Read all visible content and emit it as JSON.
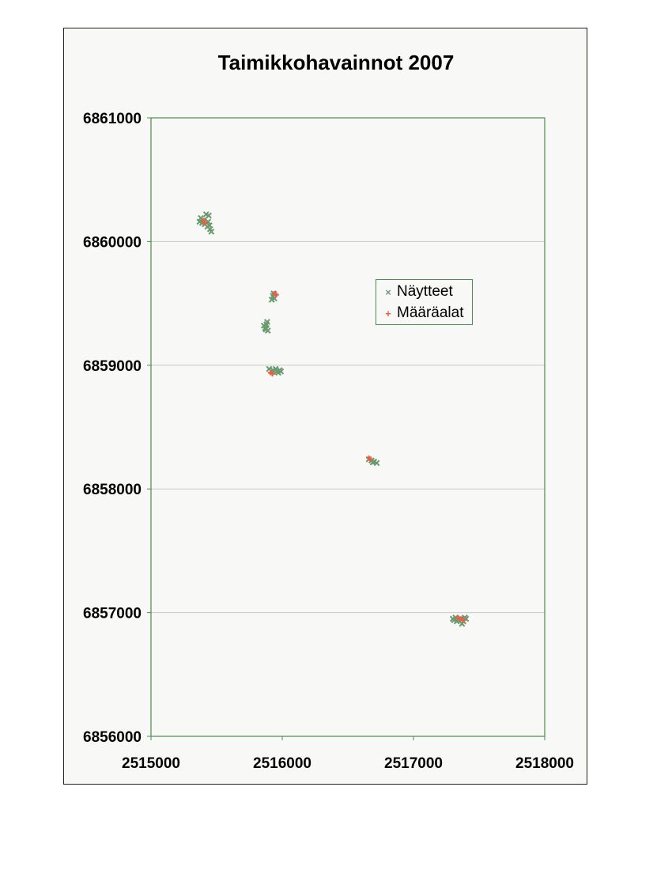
{
  "chart_data": {
    "type": "scatter",
    "title": "Taimikkohavainnot 2007",
    "xlabel": "",
    "ylabel": "",
    "xlim": [
      2515000,
      2518000
    ],
    "ylim": [
      6856000,
      6861000
    ],
    "x_ticks": [
      "2515000",
      "2516000",
      "2517000",
      "2518000"
    ],
    "y_ticks": [
      "6861000",
      "6860000",
      "6859000",
      "6858000",
      "6857000",
      "6856000"
    ],
    "grid": "horizontal",
    "legend_position": "right",
    "series": [
      {
        "name": "Näytteet",
        "marker": "x",
        "color": "#6a9a70",
        "points": [
          [
            2515380,
            6860190
          ],
          [
            2515400,
            6860170
          ],
          [
            2515420,
            6860220
          ],
          [
            2515440,
            6860210
          ],
          [
            2515410,
            6860140
          ],
          [
            2515430,
            6860120
          ],
          [
            2515450,
            6860100
          ],
          [
            2515460,
            6860080
          ],
          [
            2515390,
            6860150
          ],
          [
            2515370,
            6860160
          ],
          [
            2515435,
            6860160
          ],
          [
            2515445,
            6860130
          ],
          [
            2515930,
            6859560
          ],
          [
            2515940,
            6859540
          ],
          [
            2515920,
            6859530
          ],
          [
            2515935,
            6859580
          ],
          [
            2515870,
            6859300
          ],
          [
            2515880,
            6859330
          ],
          [
            2515890,
            6859280
          ],
          [
            2515860,
            6859320
          ],
          [
            2515885,
            6859350
          ],
          [
            2515875,
            6859290
          ],
          [
            2515900,
            6858970
          ],
          [
            2515930,
            6858960
          ],
          [
            2515960,
            6858950
          ],
          [
            2515980,
            6858960
          ],
          [
            2515950,
            6858970
          ],
          [
            2515990,
            6858950
          ],
          [
            2515920,
            6858950
          ],
          [
            2515970,
            6858940
          ],
          [
            2516660,
            6858240
          ],
          [
            2516680,
            6858230
          ],
          [
            2516700,
            6858220
          ],
          [
            2516720,
            6858210
          ],
          [
            2516690,
            6858215
          ],
          [
            2517300,
            6856950
          ],
          [
            2517320,
            6856960
          ],
          [
            2517340,
            6856940
          ],
          [
            2517360,
            6856950
          ],
          [
            2517380,
            6856930
          ],
          [
            2517400,
            6856950
          ],
          [
            2517330,
            6856930
          ],
          [
            2517370,
            6856910
          ],
          [
            2517390,
            6856960
          ],
          [
            2517310,
            6856940
          ]
        ]
      },
      {
        "name": "Määräalat",
        "marker": "+",
        "color": "#e8604a",
        "points": [
          [
            2515400,
            6860170
          ],
          [
            2515410,
            6860150
          ],
          [
            2515940,
            6859580
          ],
          [
            2515955,
            6859570
          ],
          [
            2515910,
            6858940
          ],
          [
            2515925,
            6858930
          ],
          [
            2516660,
            6858250
          ],
          [
            2516670,
            6858240
          ],
          [
            2517340,
            6856960
          ],
          [
            2517360,
            6856950
          ],
          [
            2517380,
            6856940
          ]
        ]
      }
    ]
  }
}
